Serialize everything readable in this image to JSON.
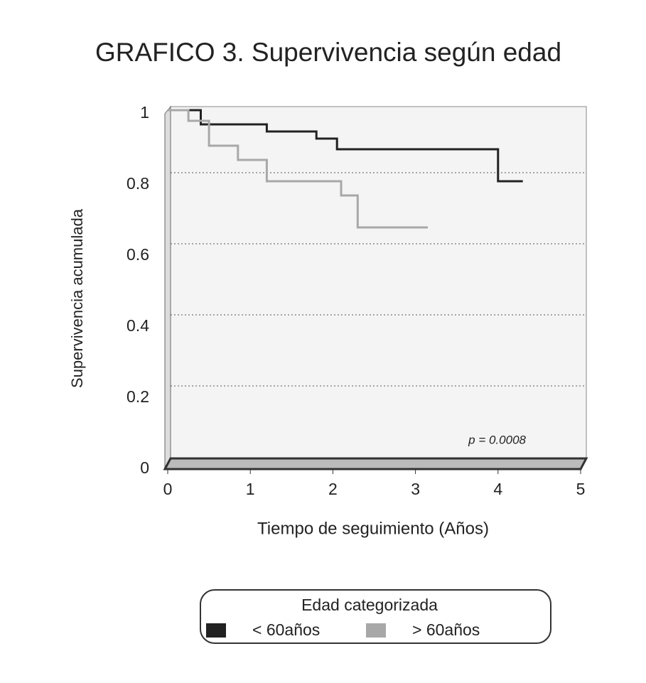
{
  "chart_data": {
    "type": "line",
    "title": "GRAFICO 3. Supervivencia según edad",
    "xlabel": "Tiempo de seguimiento (Años)",
    "ylabel": "Supervivencia acumulada",
    "annotation": "p = 0.0008",
    "legend_title": "Edad categorizada",
    "legend": "bottom",
    "grid": true,
    "xlim": [
      0,
      5
    ],
    "xticks": [
      0,
      1,
      2,
      3,
      4,
      5
    ],
    "ylim": [
      0,
      1
    ],
    "yticks": [
      0,
      0.2,
      0.4,
      0.6,
      0.8,
      1
    ],
    "series": [
      {
        "name": "< 60años",
        "color": "#222222",
        "x": [
          0,
          0.4,
          0.4,
          1.2,
          1.2,
          1.8,
          1.8,
          2.05,
          2.05,
          4.0,
          4.0,
          4.3
        ],
        "values": [
          1,
          1,
          0.96,
          0.96,
          0.94,
          0.94,
          0.92,
          0.92,
          0.89,
          0.89,
          0.8,
          0.8
        ]
      },
      {
        "name": "> 60años",
        "color": "#a8a8a8",
        "x": [
          0,
          0.25,
          0.25,
          0.5,
          0.5,
          0.85,
          0.85,
          1.2,
          1.2,
          2.1,
          2.1,
          2.3,
          2.3,
          3.15
        ],
        "values": [
          1,
          1,
          0.97,
          0.97,
          0.9,
          0.9,
          0.86,
          0.86,
          0.8,
          0.8,
          0.76,
          0.76,
          0.67,
          0.67
        ]
      }
    ]
  }
}
